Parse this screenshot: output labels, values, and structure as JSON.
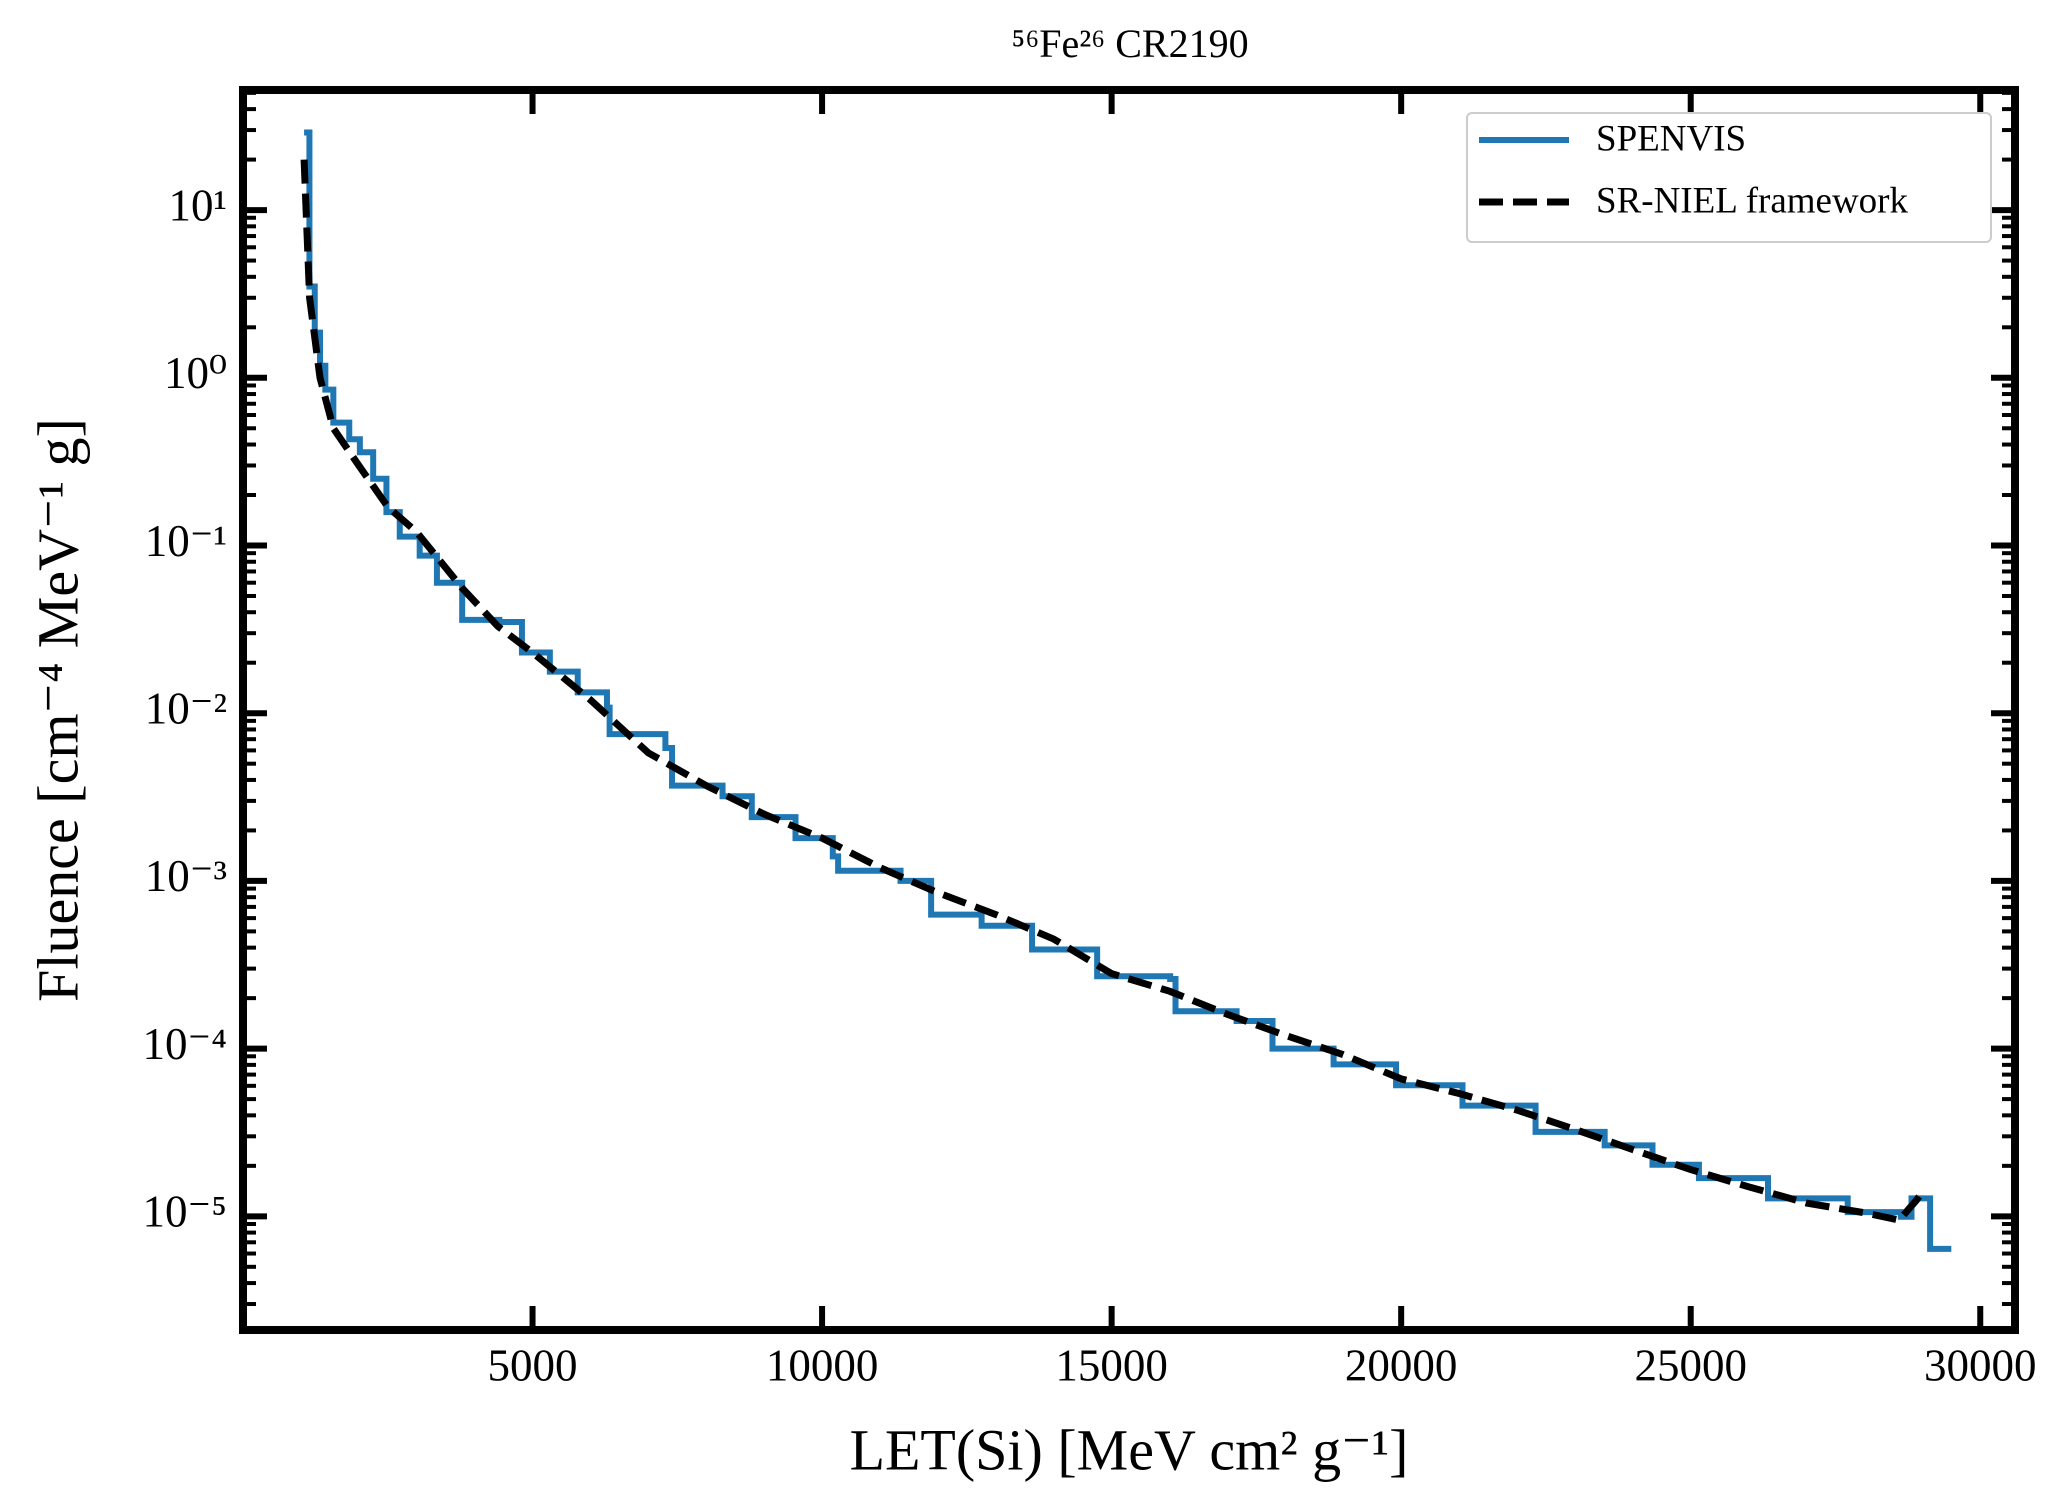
{
  "chart_data": {
    "type": "line",
    "title": "⁵⁶Fe²⁶ CR2190",
    "x_label": "LET(Si) [MeV cm² g⁻¹]",
    "y_label": "Fluence [cm⁻⁴ MeV⁻¹ g]",
    "xlim": [
      0,
      30600
    ],
    "ylim": [
      2.1e-06,
      52
    ],
    "yscale": "log",
    "xticks": [
      5000,
      10000,
      15000,
      20000,
      25000,
      30000
    ],
    "yticks": [
      {
        "value": 1e-05,
        "label": "10⁻⁵"
      },
      {
        "value": 0.0001,
        "label": "10⁻⁴"
      },
      {
        "value": 0.001,
        "label": "10⁻³"
      },
      {
        "value": 0.01,
        "label": "10⁻²"
      },
      {
        "value": 0.1,
        "label": "10⁻¹"
      },
      {
        "value": 1,
        "label": "10⁰"
      },
      {
        "value": 10,
        "label": "10¹"
      }
    ],
    "legend": "upper right",
    "series": [
      {
        "name": "SPENVIS",
        "color": "#1f77b4",
        "drawstyle": "steps-post",
        "x": [
          1055,
          1147,
          1239,
          1330,
          1422,
          1560,
          1835,
          2018,
          2248,
          2477,
          2707,
          3051,
          3349,
          3785,
          4427,
          4817,
          5299,
          5780,
          6285,
          6331,
          7294,
          7409,
          8281,
          8786,
          9541,
          10185,
          10277,
          11355,
          11883,
          12755,
          13626,
          14750,
          16011,
          16103,
          17158,
          17778,
          18833,
          19912,
          21059,
          22321,
          23514,
          24340,
          25142,
          26335,
          27711,
          28629,
          28813,
          29134,
          29500
        ],
        "values": [
          29,
          3.5,
          1.86,
          1.18,
          0.85,
          0.54,
          0.43,
          0.36,
          0.25,
          0.158,
          0.113,
          0.087,
          0.06,
          0.036,
          0.035,
          0.023,
          0.0177,
          0.0133,
          0.0108,
          0.0075,
          0.0062,
          0.0037,
          0.0032,
          0.0024,
          0.0018,
          0.0014,
          0.00115,
          0.001,
          0.00063,
          0.00054,
          0.00039,
          0.00027,
          0.00026,
          0.000167,
          0.000146,
          0.0001,
          8.05e-05,
          6.05e-05,
          4.57e-05,
          3.19e-05,
          2.65e-05,
          2.03e-05,
          1.69e-05,
          1.28e-05,
          1.06e-05,
          9.95e-06,
          1.28e-05,
          6.4e-06,
          6.4e-06
        ]
      },
      {
        "name": "SR-NIEL framework",
        "color": "#000000",
        "dashed": true,
        "x": [
          1055,
          1150,
          1330,
          1560,
          2000,
          2500,
          3000,
          3800,
          4400,
          5000,
          6000,
          7000,
          8000,
          9000,
          10000,
          11000,
          12000,
          13000,
          14000,
          15000,
          16000,
          17000,
          18000,
          19000,
          20000,
          21000,
          22000,
          23000,
          24000,
          25000,
          26000,
          27000,
          28000,
          28600,
          28900,
          29000
        ],
        "values": [
          20,
          3,
          1.0,
          0.5,
          0.3,
          0.17,
          0.12,
          0.055,
          0.033,
          0.023,
          0.012,
          0.0058,
          0.0037,
          0.0025,
          0.0018,
          0.0012,
          0.00085,
          0.00063,
          0.00045,
          0.00028,
          0.00022,
          0.00016,
          0.00012,
          9.2e-05,
          6.6e-05,
          5.4e-05,
          4.3e-05,
          3.3e-05,
          2.5e-05,
          1.9e-05,
          1.5e-05,
          1.2e-05,
          1.05e-05,
          9.5e-06,
          1.25e-05,
          1.4e-05
        ]
      }
    ]
  }
}
